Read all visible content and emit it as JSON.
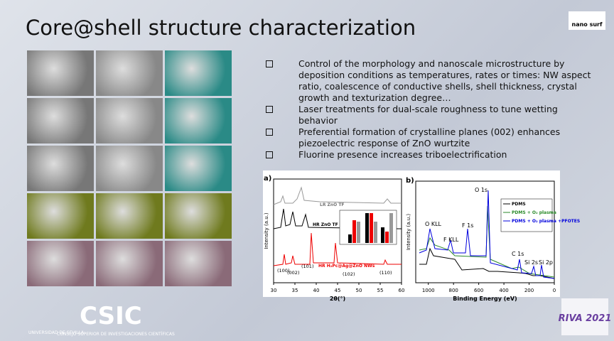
{
  "title": "Core@shell structure characterization",
  "logo": "nano surf",
  "bullets": [
    "Control of the morphology and nanoscale microstructure by deposition conditions as temperatures, rates or times: NW aspect ratio, coalescence of conductive shells, shell thickness, crystal growth and texturization degree…",
    "Laser treatments for dual-scale roughness to tune wetting behavior",
    "Preferential formation of crystalline planes (002) enhances piezoelectric response of ZnO wurtzite",
    "Fluorine presence increases triboelectrification"
  ],
  "xrd": {
    "label": "a)",
    "ylabel": "Intensity (a.u.)",
    "xlabel": "2θ(°)",
    "xlim": [
      30,
      60
    ],
    "xticks": [
      30,
      35,
      40,
      45,
      50,
      55,
      60
    ],
    "curves": [
      "LR ZnO TF",
      "HR ZnO TF",
      "HR H₂Pc@Ag@ZnO NWs"
    ],
    "peaks": [
      "(100)",
      "(002)",
      "(101)",
      "(102)",
      "(110)"
    ]
  },
  "xps": {
    "label": "b)",
    "ylabel": "Intensity (a.u.)",
    "xlabel": "Binding Energy (eV)",
    "xlim": [
      1100,
      0
    ],
    "xticks": [
      1000,
      800,
      600,
      400,
      200,
      0
    ],
    "legend": [
      "PDMS",
      "PDMS + O₂ plasma",
      "PDMS + O₂ plasma +PFOTES"
    ],
    "peaks": [
      "O KLL",
      "F KLL",
      "F 1s",
      "O 1s",
      "C 1s",
      "Si 2s",
      "Si 2p"
    ]
  },
  "footer": {
    "university": "UNIVERSIDAD DE SEVILLA",
    "csic": "CSIC",
    "csic_full": "CONSEJO SUPERIOR DE INVESTIGACIONES CIENTÍFICAS",
    "event": "RIVA 2021"
  }
}
